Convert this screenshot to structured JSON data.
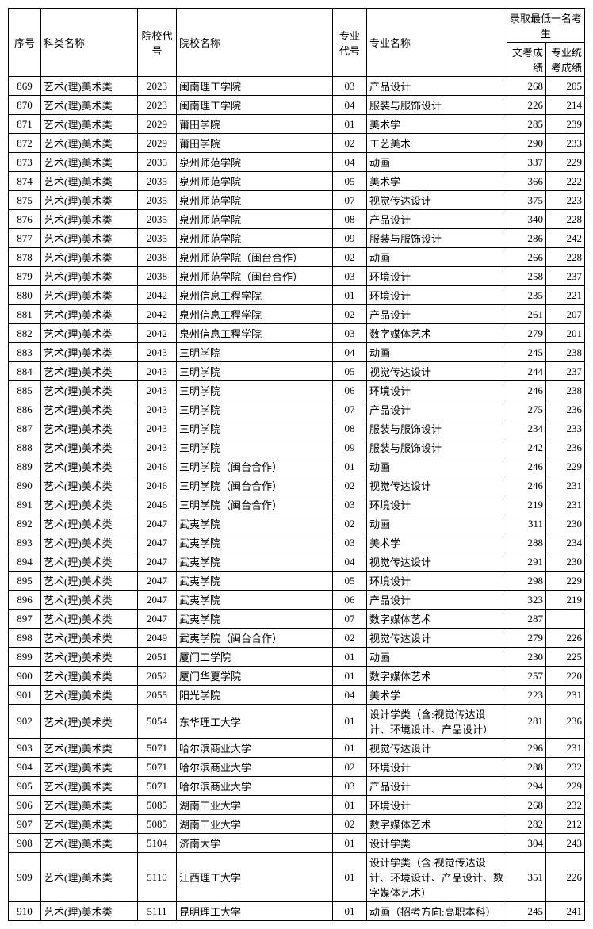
{
  "headers": {
    "seq": "序号",
    "cat": "科类名称",
    "school_code": "院校代号",
    "school_name": "院校名称",
    "major_code": "专业代号",
    "major_name": "专业名称",
    "score_group": "录取最低一名考生",
    "score1": "文考成绩",
    "score2": "专业统考成绩"
  },
  "rows": [
    {
      "seq": "869",
      "cat": "艺术(理)美术类",
      "sc": "2023",
      "sn": "闽南理工学院",
      "mc": "03",
      "mn": "产品设计",
      "s1": "268",
      "s2": "205"
    },
    {
      "seq": "870",
      "cat": "艺术(理)美术类",
      "sc": "2023",
      "sn": "闽南理工学院",
      "mc": "04",
      "mn": "服装与服饰设计",
      "s1": "226",
      "s2": "214"
    },
    {
      "seq": "871",
      "cat": "艺术(理)美术类",
      "sc": "2029",
      "sn": "莆田学院",
      "mc": "01",
      "mn": "美术学",
      "s1": "285",
      "s2": "239"
    },
    {
      "seq": "872",
      "cat": "艺术(理)美术类",
      "sc": "2029",
      "sn": "莆田学院",
      "mc": "02",
      "mn": "工艺美术",
      "s1": "290",
      "s2": "233"
    },
    {
      "seq": "873",
      "cat": "艺术(理)美术类",
      "sc": "2035",
      "sn": "泉州师范学院",
      "mc": "04",
      "mn": "动画",
      "s1": "337",
      "s2": "229"
    },
    {
      "seq": "874",
      "cat": "艺术(理)美术类",
      "sc": "2035",
      "sn": "泉州师范学院",
      "mc": "05",
      "mn": "美术学",
      "s1": "366",
      "s2": "222"
    },
    {
      "seq": "875",
      "cat": "艺术(理)美术类",
      "sc": "2035",
      "sn": "泉州师范学院",
      "mc": "07",
      "mn": "视觉传达设计",
      "s1": "375",
      "s2": "223"
    },
    {
      "seq": "876",
      "cat": "艺术(理)美术类",
      "sc": "2035",
      "sn": "泉州师范学院",
      "mc": "08",
      "mn": "产品设计",
      "s1": "340",
      "s2": "228"
    },
    {
      "seq": "877",
      "cat": "艺术(理)美术类",
      "sc": "2035",
      "sn": "泉州师范学院",
      "mc": "09",
      "mn": "服装与服饰设计",
      "s1": "286",
      "s2": "242"
    },
    {
      "seq": "878",
      "cat": "艺术(理)美术类",
      "sc": "2038",
      "sn": "泉州师范学院（闽台合作）",
      "mc": "02",
      "mn": "动画",
      "s1": "266",
      "s2": "228"
    },
    {
      "seq": "879",
      "cat": "艺术(理)美术类",
      "sc": "2038",
      "sn": "泉州师范学院（闽台合作）",
      "mc": "03",
      "mn": "环境设计",
      "s1": "258",
      "s2": "237"
    },
    {
      "seq": "880",
      "cat": "艺术(理)美术类",
      "sc": "2042",
      "sn": "泉州信息工程学院",
      "mc": "01",
      "mn": "环境设计",
      "s1": "235",
      "s2": "221"
    },
    {
      "seq": "881",
      "cat": "艺术(理)美术类",
      "sc": "2042",
      "sn": "泉州信息工程学院",
      "mc": "02",
      "mn": "产品设计",
      "s1": "261",
      "s2": "207"
    },
    {
      "seq": "882",
      "cat": "艺术(理)美术类",
      "sc": "2042",
      "sn": "泉州信息工程学院",
      "mc": "03",
      "mn": "数字媒体艺术",
      "s1": "279",
      "s2": "201"
    },
    {
      "seq": "883",
      "cat": "艺术(理)美术类",
      "sc": "2043",
      "sn": "三明学院",
      "mc": "04",
      "mn": "动画",
      "s1": "245",
      "s2": "238"
    },
    {
      "seq": "884",
      "cat": "艺术(理)美术类",
      "sc": "2043",
      "sn": "三明学院",
      "mc": "05",
      "mn": "视觉传达设计",
      "s1": "244",
      "s2": "237"
    },
    {
      "seq": "885",
      "cat": "艺术(理)美术类",
      "sc": "2043",
      "sn": "三明学院",
      "mc": "06",
      "mn": "环境设计",
      "s1": "246",
      "s2": "238"
    },
    {
      "seq": "886",
      "cat": "艺术(理)美术类",
      "sc": "2043",
      "sn": "三明学院",
      "mc": "07",
      "mn": "产品设计",
      "s1": "275",
      "s2": "236"
    },
    {
      "seq": "887",
      "cat": "艺术(理)美术类",
      "sc": "2043",
      "sn": "三明学院",
      "mc": "08",
      "mn": "服装与服饰设计",
      "s1": "234",
      "s2": "233"
    },
    {
      "seq": "888",
      "cat": "艺术(理)美术类",
      "sc": "2043",
      "sn": "三明学院",
      "mc": "09",
      "mn": "服装与服饰设计",
      "s1": "242",
      "s2": "236"
    },
    {
      "seq": "889",
      "cat": "艺术(理)美术类",
      "sc": "2046",
      "sn": "三明学院（闽台合作）",
      "mc": "01",
      "mn": "动画",
      "s1": "246",
      "s2": "229"
    },
    {
      "seq": "890",
      "cat": "艺术(理)美术类",
      "sc": "2046",
      "sn": "三明学院（闽台合作）",
      "mc": "02",
      "mn": "视觉传达设计",
      "s1": "246",
      "s2": "231"
    },
    {
      "seq": "891",
      "cat": "艺术(理)美术类",
      "sc": "2046",
      "sn": "三明学院（闽台合作）",
      "mc": "03",
      "mn": "环境设计",
      "s1": "219",
      "s2": "231"
    },
    {
      "seq": "892",
      "cat": "艺术(理)美术类",
      "sc": "2047",
      "sn": "武夷学院",
      "mc": "02",
      "mn": "动画",
      "s1": "311",
      "s2": "230"
    },
    {
      "seq": "893",
      "cat": "艺术(理)美术类",
      "sc": "2047",
      "sn": "武夷学院",
      "mc": "03",
      "mn": "美术学",
      "s1": "288",
      "s2": "234"
    },
    {
      "seq": "894",
      "cat": "艺术(理)美术类",
      "sc": "2047",
      "sn": "武夷学院",
      "mc": "04",
      "mn": "视觉传达设计",
      "s1": "291",
      "s2": "230"
    },
    {
      "seq": "895",
      "cat": "艺术(理)美术类",
      "sc": "2047",
      "sn": "武夷学院",
      "mc": "05",
      "mn": "环境设计",
      "s1": "298",
      "s2": "229"
    },
    {
      "seq": "896",
      "cat": "艺术(理)美术类",
      "sc": "2047",
      "sn": "武夷学院",
      "mc": "06",
      "mn": "产品设计",
      "s1": "323",
      "s2": "219"
    },
    {
      "seq": "897",
      "cat": "艺术(理)美术类",
      "sc": "2047",
      "sn": "武夷学院",
      "mc": "07",
      "mn": "数字媒体艺术",
      "s1": "287",
      "s2": ""
    },
    {
      "seq": "898",
      "cat": "艺术(理)美术类",
      "sc": "2049",
      "sn": "武夷学院（闽台合作）",
      "mc": "02",
      "mn": "视觉传达设计",
      "s1": "279",
      "s2": "226"
    },
    {
      "seq": "899",
      "cat": "艺术(理)美术类",
      "sc": "2051",
      "sn": "厦门工学院",
      "mc": "01",
      "mn": "动画",
      "s1": "230",
      "s2": "225"
    },
    {
      "seq": "900",
      "cat": "艺术(理)美术类",
      "sc": "2052",
      "sn": "厦门华夏学院",
      "mc": "01",
      "mn": "数字媒体艺术",
      "s1": "257",
      "s2": "220"
    },
    {
      "seq": "901",
      "cat": "艺术(理)美术类",
      "sc": "2055",
      "sn": "阳光学院",
      "mc": "04",
      "mn": "美术学",
      "s1": "223",
      "s2": "231"
    },
    {
      "seq": "902",
      "cat": "艺术(理)美术类",
      "sc": "5054",
      "sn": "东华理工大学",
      "mc": "01",
      "mn": "设计学类（含:视觉传达设计、环境设计、产品设计）",
      "s1": "281",
      "s2": "236"
    },
    {
      "seq": "903",
      "cat": "艺术(理)美术类",
      "sc": "5071",
      "sn": "哈尔滨商业大学",
      "mc": "01",
      "mn": "视觉传达设计",
      "s1": "296",
      "s2": "231"
    },
    {
      "seq": "904",
      "cat": "艺术(理)美术类",
      "sc": "5071",
      "sn": "哈尔滨商业大学",
      "mc": "02",
      "mn": "环境设计",
      "s1": "288",
      "s2": "232"
    },
    {
      "seq": "905",
      "cat": "艺术(理)美术类",
      "sc": "5071",
      "sn": "哈尔滨商业大学",
      "mc": "03",
      "mn": "产品设计",
      "s1": "294",
      "s2": "229"
    },
    {
      "seq": "906",
      "cat": "艺术(理)美术类",
      "sc": "5085",
      "sn": "湖南工业大学",
      "mc": "01",
      "mn": "环境设计",
      "s1": "268",
      "s2": "232"
    },
    {
      "seq": "907",
      "cat": "艺术(理)美术类",
      "sc": "5085",
      "sn": "湖南工业大学",
      "mc": "02",
      "mn": "数字媒体艺术",
      "s1": "282",
      "s2": "212"
    },
    {
      "seq": "908",
      "cat": "艺术(理)美术类",
      "sc": "5104",
      "sn": "济南大学",
      "mc": "01",
      "mn": "设计学类",
      "s1": "304",
      "s2": "243"
    },
    {
      "seq": "909",
      "cat": "艺术(理)美术类",
      "sc": "5110",
      "sn": "江西理工大学",
      "mc": "01",
      "mn": "设计学类（含:视觉传达设计、环境设计、产品设计、数字媒体艺术）",
      "s1": "351",
      "s2": "226"
    },
    {
      "seq": "910",
      "cat": "艺术(理)美术类",
      "sc": "5111",
      "sn": "昆明理工大学",
      "mc": "01",
      "mn": "动画（招考方向:高职本科）",
      "s1": "245",
      "s2": "241"
    }
  ]
}
